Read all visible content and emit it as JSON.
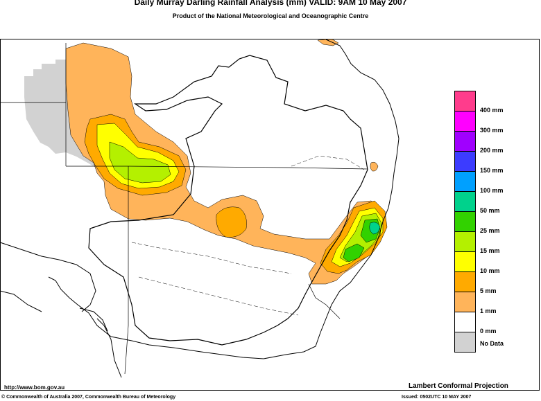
{
  "title": "Daily Murray Darling Rainfall Analysis (mm)  VALID: 9AM 10 May 2007",
  "subtitle": "Product of the National Meteorological and Oceanographic Centre",
  "legend": [
    {
      "label": "400 mm",
      "color": "#ff3c8c"
    },
    {
      "label": "300 mm",
      "color": "#ff00ff"
    },
    {
      "label": "200 mm",
      "color": "#a000ff"
    },
    {
      "label": "150 mm",
      "color": "#3c3cff"
    },
    {
      "label": "100 mm",
      "color": "#00a0ff"
    },
    {
      "label": "50 mm",
      "color": "#00d28c"
    },
    {
      "label": "25 mm",
      "color": "#32d200"
    },
    {
      "label": "15 mm",
      "color": "#b4f000"
    },
    {
      "label": "10 mm",
      "color": "#ffff00"
    },
    {
      "label": "5 mm",
      "color": "#ffaa00"
    },
    {
      "label": "1 mm",
      "color": "#ffb45a"
    },
    {
      "label": "0 mm",
      "color": "#ffffff"
    },
    {
      "label": "No Data",
      "color": "#d2d2d2"
    }
  ],
  "footer": {
    "url": "http://www.bom.gov.au",
    "projection": "Lambert Conformal Projection",
    "copyright": "© Commonwealth of Australia 2007, Commonwealth Bureau of Meteorology",
    "issued": "Issued: 0502UTC 10 MAY 2007"
  }
}
